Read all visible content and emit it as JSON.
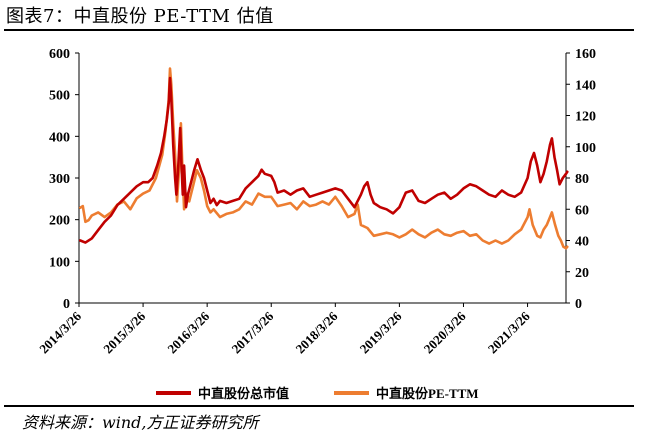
{
  "figure": {
    "title": "图表7：中直股份 PE-TTM 估值",
    "source": "资料来源：wind,方正证券研究所"
  },
  "colors": {
    "market_cap": "#c00000",
    "pe_ttm": "#ed7d31",
    "axis": "#000000"
  },
  "chart_data": {
    "type": "line",
    "title": "中直股份 PE-TTM 估值",
    "x_tick_labels": [
      "2014/3/26",
      "2015/3/26",
      "2016/3/26",
      "2017/3/26",
      "2018/3/26",
      "2019/3/26",
      "2020/3/26",
      "2021/3/26"
    ],
    "xlim": [
      2014.0,
      2021.6
    ],
    "y_left": {
      "range": [
        0,
        600
      ],
      "ticks": [
        0,
        100,
        200,
        300,
        400,
        500,
        600
      ]
    },
    "y_right": {
      "range": [
        0,
        160
      ],
      "ticks": [
        0,
        20,
        40,
        60,
        80,
        100,
        120,
        140,
        160
      ]
    },
    "legend_position": "bottom",
    "series": [
      {
        "name": "中直股份总市值",
        "axis": "left",
        "color": "#c00000",
        "points": [
          [
            2014.02,
            150
          ],
          [
            2014.1,
            145
          ],
          [
            2014.2,
            155
          ],
          [
            2014.3,
            175
          ],
          [
            2014.4,
            195
          ],
          [
            2014.5,
            210
          ],
          [
            2014.6,
            235
          ],
          [
            2014.7,
            250
          ],
          [
            2014.8,
            265
          ],
          [
            2014.9,
            280
          ],
          [
            2015.0,
            290
          ],
          [
            2015.08,
            290
          ],
          [
            2015.15,
            300
          ],
          [
            2015.22,
            330
          ],
          [
            2015.28,
            360
          ],
          [
            2015.33,
            400
          ],
          [
            2015.37,
            440
          ],
          [
            2015.4,
            480
          ],
          [
            2015.42,
            540
          ],
          [
            2015.44,
            490
          ],
          [
            2015.47,
            380
          ],
          [
            2015.5,
            300
          ],
          [
            2015.52,
            260
          ],
          [
            2015.55,
            330
          ],
          [
            2015.58,
            420
          ],
          [
            2015.6,
            330
          ],
          [
            2015.62,
            260
          ],
          [
            2015.64,
            330
          ],
          [
            2015.67,
            230
          ],
          [
            2015.7,
            260
          ],
          [
            2015.75,
            290
          ],
          [
            2015.8,
            320
          ],
          [
            2015.85,
            345
          ],
          [
            2015.9,
            320
          ],
          [
            2015.95,
            300
          ],
          [
            2016.0,
            270
          ],
          [
            2016.05,
            240
          ],
          [
            2016.1,
            250
          ],
          [
            2016.15,
            235
          ],
          [
            2016.2,
            245
          ],
          [
            2016.3,
            240
          ],
          [
            2016.4,
            245
          ],
          [
            2016.5,
            250
          ],
          [
            2016.6,
            275
          ],
          [
            2016.7,
            290
          ],
          [
            2016.8,
            305
          ],
          [
            2016.85,
            320
          ],
          [
            2016.9,
            310
          ],
          [
            2017.0,
            305
          ],
          [
            2017.05,
            290
          ],
          [
            2017.1,
            265
          ],
          [
            2017.2,
            270
          ],
          [
            2017.3,
            260
          ],
          [
            2017.4,
            270
          ],
          [
            2017.5,
            275
          ],
          [
            2017.6,
            255
          ],
          [
            2017.7,
            260
          ],
          [
            2017.8,
            265
          ],
          [
            2017.9,
            270
          ],
          [
            2018.0,
            275
          ],
          [
            2018.1,
            270
          ],
          [
            2018.2,
            250
          ],
          [
            2018.3,
            230
          ],
          [
            2018.4,
            260
          ],
          [
            2018.45,
            280
          ],
          [
            2018.5,
            290
          ],
          [
            2018.55,
            260
          ],
          [
            2018.6,
            240
          ],
          [
            2018.7,
            230
          ],
          [
            2018.8,
            225
          ],
          [
            2018.9,
            215
          ],
          [
            2019.0,
            230
          ],
          [
            2019.1,
            265
          ],
          [
            2019.2,
            270
          ],
          [
            2019.3,
            245
          ],
          [
            2019.4,
            240
          ],
          [
            2019.5,
            250
          ],
          [
            2019.6,
            260
          ],
          [
            2019.7,
            265
          ],
          [
            2019.8,
            250
          ],
          [
            2019.9,
            260
          ],
          [
            2020.0,
            275
          ],
          [
            2020.1,
            285
          ],
          [
            2020.2,
            280
          ],
          [
            2020.3,
            270
          ],
          [
            2020.4,
            260
          ],
          [
            2020.5,
            255
          ],
          [
            2020.6,
            270
          ],
          [
            2020.7,
            260
          ],
          [
            2020.8,
            255
          ],
          [
            2020.9,
            265
          ],
          [
            2021.0,
            300
          ],
          [
            2021.05,
            340
          ],
          [
            2021.1,
            360
          ],
          [
            2021.15,
            330
          ],
          [
            2021.2,
            290
          ],
          [
            2021.25,
            310
          ],
          [
            2021.3,
            340
          ],
          [
            2021.35,
            380
          ],
          [
            2021.38,
            395
          ],
          [
            2021.42,
            350
          ],
          [
            2021.46,
            320
          ],
          [
            2021.5,
            285
          ],
          [
            2021.55,
            300
          ],
          [
            2021.6,
            310
          ],
          [
            2021.62,
            315
          ]
        ]
      },
      {
        "name": "中直股份PE-TTM",
        "axis": "right",
        "color": "#ed7d31",
        "points": [
          [
            2014.02,
            61
          ],
          [
            2014.06,
            62
          ],
          [
            2014.1,
            52
          ],
          [
            2014.15,
            53
          ],
          [
            2014.2,
            56
          ],
          [
            2014.3,
            58
          ],
          [
            2014.4,
            55
          ],
          [
            2014.5,
            58
          ],
          [
            2014.6,
            63
          ],
          [
            2014.7,
            65
          ],
          [
            2014.8,
            60
          ],
          [
            2014.9,
            67
          ],
          [
            2015.0,
            70
          ],
          [
            2015.1,
            72
          ],
          [
            2015.2,
            80
          ],
          [
            2015.3,
            95
          ],
          [
            2015.35,
            110
          ],
          [
            2015.4,
            130
          ],
          [
            2015.42,
            150
          ],
          [
            2015.44,
            140
          ],
          [
            2015.47,
            115
          ],
          [
            2015.5,
            95
          ],
          [
            2015.53,
            65
          ],
          [
            2015.56,
            85
          ],
          [
            2015.59,
            115
          ],
          [
            2015.61,
            90
          ],
          [
            2015.64,
            60
          ],
          [
            2015.68,
            70
          ],
          [
            2015.72,
            65
          ],
          [
            2015.78,
            75
          ],
          [
            2015.84,
            85
          ],
          [
            2015.9,
            80
          ],
          [
            2015.95,
            72
          ],
          [
            2016.0,
            62
          ],
          [
            2016.05,
            58
          ],
          [
            2016.1,
            60
          ],
          [
            2016.2,
            55
          ],
          [
            2016.3,
            57
          ],
          [
            2016.4,
            58
          ],
          [
            2016.5,
            60
          ],
          [
            2016.6,
            65
          ],
          [
            2016.7,
            63
          ],
          [
            2016.8,
            70
          ],
          [
            2016.9,
            68
          ],
          [
            2017.0,
            68
          ],
          [
            2017.1,
            62
          ],
          [
            2017.2,
            63
          ],
          [
            2017.3,
            64
          ],
          [
            2017.4,
            60
          ],
          [
            2017.5,
            65
          ],
          [
            2017.6,
            62
          ],
          [
            2017.7,
            63
          ],
          [
            2017.8,
            65
          ],
          [
            2017.9,
            63
          ],
          [
            2018.0,
            68
          ],
          [
            2018.1,
            62
          ],
          [
            2018.2,
            55
          ],
          [
            2018.3,
            57
          ],
          [
            2018.35,
            63
          ],
          [
            2018.4,
            50
          ],
          [
            2018.5,
            48
          ],
          [
            2018.6,
            43
          ],
          [
            2018.7,
            44
          ],
          [
            2018.8,
            45
          ],
          [
            2018.9,
            44
          ],
          [
            2019.0,
            42
          ],
          [
            2019.1,
            44
          ],
          [
            2019.2,
            47
          ],
          [
            2019.3,
            44
          ],
          [
            2019.4,
            42
          ],
          [
            2019.5,
            45
          ],
          [
            2019.6,
            47
          ],
          [
            2019.7,
            44
          ],
          [
            2019.8,
            43
          ],
          [
            2019.9,
            45
          ],
          [
            2020.0,
            46
          ],
          [
            2020.1,
            43
          ],
          [
            2020.2,
            44
          ],
          [
            2020.3,
            40
          ],
          [
            2020.4,
            38
          ],
          [
            2020.5,
            40
          ],
          [
            2020.6,
            38
          ],
          [
            2020.7,
            40
          ],
          [
            2020.8,
            44
          ],
          [
            2020.9,
            47
          ],
          [
            2021.0,
            55
          ],
          [
            2021.03,
            60
          ],
          [
            2021.08,
            50
          ],
          [
            2021.15,
            43
          ],
          [
            2021.2,
            42
          ],
          [
            2021.25,
            47
          ],
          [
            2021.3,
            50
          ],
          [
            2021.35,
            55
          ],
          [
            2021.38,
            58
          ],
          [
            2021.43,
            50
          ],
          [
            2021.48,
            43
          ],
          [
            2021.52,
            40
          ],
          [
            2021.56,
            36
          ],
          [
            2021.6,
            35
          ],
          [
            2021.62,
            36
          ]
        ]
      }
    ]
  }
}
